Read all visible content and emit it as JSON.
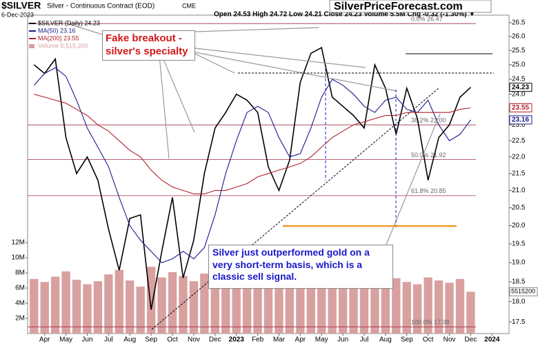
{
  "chart_data": {
    "type": "line",
    "symbol": "$SILVER",
    "title": "Silver - Continuous Contract (EOD)",
    "exchange": "CME",
    "date": "6-Dec-2023",
    "quote": "Open 24.53 High 24.72 Low 24.21 Close 24.23 Volume 5.5M Chg -0.32 (-1.30%) ▼",
    "watermark": "SilverPriceForecast.com",
    "annotations": [
      "Fake breakout - silver's specialty",
      "Silver just outperformed gold on a very short-term basis, which is a classic sell signal."
    ],
    "log_scale": true,
    "categories": [
      null,
      "Apr",
      null,
      "May",
      null,
      "Jun",
      null,
      "Jul",
      null,
      "Aug",
      null,
      "Sep",
      null,
      "Oct",
      null,
      "Nov",
      null,
      "Dec",
      null,
      "2023",
      null,
      "Feb",
      null,
      "Mar",
      null,
      "Apr",
      null,
      "May",
      null,
      "Jun",
      null,
      "Jul",
      null,
      "Aug",
      null,
      "Sep",
      null,
      "Oct",
      null,
      "Nov",
      null,
      "Dec",
      null,
      "2024"
    ],
    "series": [
      {
        "name": "$SILVER (Daily) 24.23",
        "color": "#000000",
        "values": [
          25.0,
          24.7,
          25.2,
          22.6,
          21.5,
          22.0,
          21.3,
          19.9,
          18.8,
          20.2,
          20.3,
          17.8,
          19.3,
          20.8,
          18.6,
          19.6,
          21.5,
          22.9,
          23.4,
          24.0,
          23.8,
          23.4,
          21.7,
          21.0,
          21.9,
          24.4,
          25.4,
          25.6,
          23.9,
          23.6,
          23.3,
          22.9,
          25.0,
          24.2,
          22.7,
          24.2,
          23.2,
          21.3,
          22.6,
          23.0,
          23.9,
          24.23,
          null,
          null
        ]
      },
      {
        "name": "MA(50) 23.16",
        "color": "#1a1a8c",
        "values": [
          24.3,
          24.7,
          24.9,
          24.6,
          23.8,
          22.9,
          22.3,
          21.7,
          20.8,
          20.0,
          19.6,
          19.3,
          19.0,
          19.1,
          19.3,
          19.1,
          19.4,
          20.3,
          21.5,
          22.5,
          23.4,
          23.6,
          23.4,
          22.6,
          22.0,
          22.1,
          22.9,
          23.9,
          24.5,
          24.3,
          24.0,
          23.6,
          23.4,
          23.8,
          23.9,
          23.5,
          23.4,
          23.8,
          23.0,
          22.5,
          22.7,
          23.16,
          null,
          null
        ]
      },
      {
        "name": "MA(200) 23.55",
        "color": "#b0202a",
        "values": [
          24.0,
          23.9,
          23.8,
          23.7,
          23.5,
          23.3,
          23.0,
          22.8,
          22.5,
          22.2,
          22.0,
          21.6,
          21.3,
          21.1,
          21.0,
          20.9,
          20.9,
          21.0,
          21.0,
          21.1,
          21.2,
          21.4,
          21.5,
          21.6,
          21.7,
          21.8,
          22.0,
          22.3,
          22.6,
          22.8,
          23.0,
          23.1,
          23.2,
          23.3,
          23.3,
          23.4,
          23.4,
          23.4,
          23.4,
          23.4,
          23.5,
          23.55,
          null,
          null
        ]
      },
      {
        "name": "Volume 5,515,200",
        "color": "#d9a0a0",
        "type": "bar",
        "axis": "y2",
        "values": [
          7200000,
          6800000,
          7500000,
          8200000,
          7100000,
          6500000,
          6900000,
          7800000,
          8400000,
          7000000,
          6200000,
          8800000,
          7400000,
          8100000,
          7600000,
          6900000,
          7900000,
          6600000,
          6100000,
          6800000,
          7300000,
          6700000,
          7700000,
          8300000,
          7500000,
          8000000,
          7200000,
          7600000,
          6900000,
          6300000,
          6000000,
          6400000,
          7100000,
          6600000,
          7300000,
          6800000,
          6500000,
          7400000,
          7000000,
          6700000,
          7200000,
          5515200,
          null,
          null
        ]
      }
    ],
    "price_tags": [
      24.23,
      23.55,
      23.16
    ],
    "y2_tags": [
      5515200
    ],
    "fib_levels": [
      {
        "value": 26.47,
        "label": "0.0% 26.47"
      },
      {
        "value": 23.0,
        "label": "38.2% 23.00"
      },
      {
        "value": 21.92,
        "label": "50.0% 21.92"
      },
      {
        "value": 20.85,
        "label": "61.8% 20.85"
      },
      {
        "value": 17.38,
        "label": "100.0% 17.38"
      }
    ],
    "ylim": [
      17.22,
      26.78
    ],
    "yticks": [
      17.5,
      {
        "value": 18,
        "label": "18.0"
      },
      18.5,
      {
        "value": 19,
        "label": "19.0"
      },
      19.5,
      {
        "value": 20,
        "label": "20.0"
      },
      20.5,
      {
        "value": 21,
        "label": "21.0"
      },
      21.5,
      {
        "value": 22,
        "label": "22.0"
      },
      22.5,
      {
        "value": 23,
        "label": "23.0"
      },
      23.5,
      {
        "value": 24,
        "label": "24.0"
      },
      24.5,
      {
        "value": 25,
        "label": "25.0"
      },
      25.5,
      {
        "value": 26,
        "label": "26.0"
      },
      26.5
    ],
    "y2lim": [
      0,
      42000000
    ],
    "y2ticks": [
      {
        "value": 2000000,
        "label": "2M"
      },
      {
        "value": 4000000,
        "label": "4M"
      },
      {
        "value": 6000000,
        "label": "6M"
      },
      {
        "value": 8000000,
        "label": "8M"
      },
      {
        "value": 10000000,
        "label": "10M"
      },
      {
        "value": 12000000,
        "label": "12M"
      }
    ],
    "grid": false
  }
}
